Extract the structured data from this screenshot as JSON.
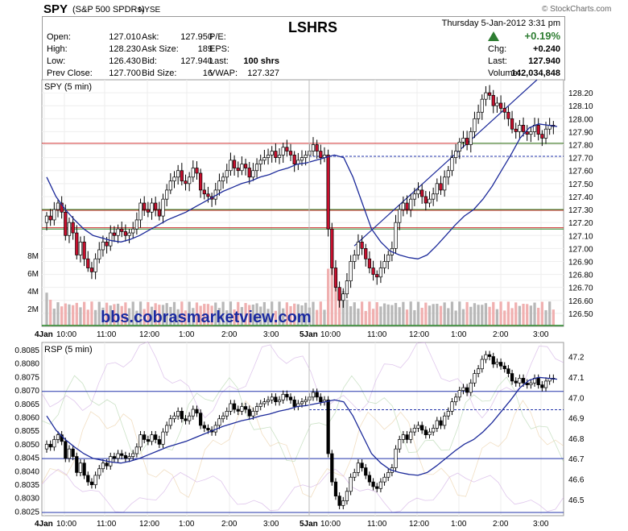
{
  "header": {
    "symbol": "SPY",
    "name": "(S&P 500 SPDRs)",
    "exchange": "NYSE",
    "watermark": "© StockCharts.com",
    "annotation": "LSHRS",
    "date": "Thursday  5-Jan-2012  3:31 pm",
    "change_pct": "+0.19%",
    "stats": [
      {
        "label": "Open:",
        "value": "127.010"
      },
      {
        "label": "High:",
        "value": "128.230"
      },
      {
        "label": "Low:",
        "value": "126.430"
      },
      {
        "label": "Prev Close:",
        "value": "127.700"
      },
      {
        "label": "Ask:",
        "value": "127.950"
      },
      {
        "label": "Ask Size:",
        "value": "189"
      },
      {
        "label": "Bid:",
        "value": "127.940"
      },
      {
        "label": "Bid Size:",
        "value": "16"
      },
      {
        "label": "P/E:",
        "value": ""
      },
      {
        "label": "EPS:",
        "value": ""
      },
      {
        "label": "Last:",
        "value": "100 shrs"
      },
      {
        "label": "VWAP:",
        "value": "127.327"
      },
      {
        "label": "Chg:",
        "value": "+0.240"
      },
      {
        "label": "Last:",
        "value": "127.940"
      },
      {
        "label": "Volume:",
        "value": "142,034,848"
      }
    ]
  },
  "colors": {
    "up": "#ffffff",
    "down": "#c8102e",
    "ma": "#1c2a9a",
    "red_line": "#d03030",
    "green_line": "#2a8a2a",
    "blue_line": "#2233aa",
    "volume": "#b8b8b8",
    "volume_down": "#f0b0b0",
    "up_arrow": "#2e7d32",
    "title_blue": "#1a2aa0"
  },
  "chart_data": [
    {
      "type": "candlestick",
      "label": "SPY (5 min)",
      "x_ticks": [
        "4Jan",
        "10:00",
        "11:00",
        "12:00",
        "1:00",
        "2:00",
        "3:00",
        "5Jan",
        "10:00",
        "11:00",
        "12:00",
        "1:00",
        "2:00",
        "3:00"
      ],
      "ylim": [
        126.4,
        128.3
      ],
      "y_ticks": [
        "128.20",
        "128.10",
        "128.00",
        "127.90",
        "127.80",
        "127.70",
        "127.60",
        "127.50",
        "127.40",
        "127.30",
        "127.20",
        "127.10",
        "127.00",
        "126.90",
        "126.80",
        "126.70",
        "126.60",
        "126.50"
      ],
      "volume_ticks": [
        "8M",
        "6M",
        "4M",
        "2M"
      ],
      "watermark_text": "bbs.cobrasmarketview.com",
      "horizontal_levels": [
        {
          "value": 127.81,
          "style": "red"
        },
        {
          "value": 127.71,
          "style": "blue-dashed"
        },
        {
          "value": 127.3,
          "style": "green"
        },
        {
          "value": 127.3,
          "style": "red"
        },
        {
          "value": 127.15,
          "style": "green"
        },
        {
          "value": 127.16,
          "style": "red"
        },
        {
          "value": 127.81,
          "style": "green"
        }
      ],
      "close_series": [
        127.25,
        127.22,
        127.3,
        127.35,
        127.28,
        127.1,
        127.2,
        127.12,
        126.95,
        127.05,
        126.92,
        126.85,
        126.82,
        126.92,
        126.99,
        127.05,
        127.02,
        127.12,
        127.1,
        127.15,
        127.13,
        127.1,
        127.12,
        127.15,
        127.22,
        127.35,
        127.3,
        127.28,
        127.35,
        127.3,
        127.25,
        127.38,
        127.45,
        127.52,
        127.55,
        127.6,
        127.52,
        127.5,
        127.55,
        127.62,
        127.58,
        127.45,
        127.42,
        127.4,
        127.38,
        127.45,
        127.52,
        127.55,
        127.6,
        127.68,
        127.62,
        127.6,
        127.65,
        127.62,
        127.55,
        127.6,
        127.65,
        127.68,
        127.7,
        127.72,
        127.75,
        127.7,
        127.72,
        127.78,
        127.75,
        127.72,
        127.65,
        127.68,
        127.7,
        127.72,
        127.75,
        127.8,
        127.75,
        127.7,
        127.72,
        127.15,
        126.85,
        126.7,
        126.6,
        126.65,
        126.75,
        126.9,
        126.95,
        127.05,
        127.0,
        126.92,
        126.85,
        126.8,
        126.78,
        126.85,
        126.9,
        126.95,
        127.0,
        127.2,
        127.3,
        127.35,
        127.3,
        127.38,
        127.42,
        127.45,
        127.4,
        127.35,
        127.38,
        127.42,
        127.5,
        127.45,
        127.55,
        127.6,
        127.7,
        127.75,
        127.82,
        127.85,
        127.8,
        127.9,
        128.0,
        128.05,
        128.15,
        128.2,
        128.18,
        128.1,
        128.12,
        128.08,
        128.05,
        128.0,
        127.92,
        127.9,
        127.95,
        127.9,
        127.88,
        127.9,
        127.95,
        127.88,
        127.85,
        127.92,
        127.95,
        127.94
      ],
      "moving_average": [
        127.55,
        127.4,
        127.3,
        127.22,
        127.15,
        127.1,
        127.08,
        127.06,
        127.05,
        127.07,
        127.1,
        127.14,
        127.18,
        127.22,
        127.25,
        127.28,
        127.32,
        127.36,
        127.4,
        127.44,
        127.47,
        127.5,
        127.52,
        127.55,
        127.57,
        127.6,
        127.62,
        127.65,
        127.66,
        127.68,
        127.7,
        127.72,
        127.7,
        127.55,
        127.35,
        127.15,
        127.05,
        126.98,
        126.95,
        126.93,
        126.92,
        126.95,
        127.02,
        127.1,
        127.18,
        127.25,
        127.3,
        127.38,
        127.48,
        127.6,
        127.72,
        127.85,
        127.93,
        127.96,
        127.95,
        127.94
      ]
    },
    {
      "type": "line",
      "label": "RSP (5 min)",
      "left_ticks": [
        "0.8085",
        "0.8080",
        "0.8075",
        "0.8070",
        "0.8065",
        "0.8060",
        "0.8055",
        "0.8050",
        "0.8045",
        "0.8040",
        "0.8035",
        "0.8030",
        "0.8025"
      ],
      "right_ticks": [
        "47.2",
        "47.1",
        "47.0",
        "46.9",
        "46.8",
        "46.7",
        "46.6",
        "46.5"
      ],
      "x_ticks": [
        "4Jan",
        "10:00",
        "11:00",
        "12:00",
        "1:00",
        "2:00",
        "3:00",
        "5Jan",
        "10:00",
        "11:00",
        "12:00",
        "1:00",
        "2:00",
        "3:00"
      ],
      "horizontal_levels": [
        {
          "value": 47.03,
          "style": "blue"
        },
        {
          "value": 46.94,
          "style": "blue-dashed"
        },
        {
          "value": 46.7,
          "style": "blue"
        }
      ]
    }
  ]
}
